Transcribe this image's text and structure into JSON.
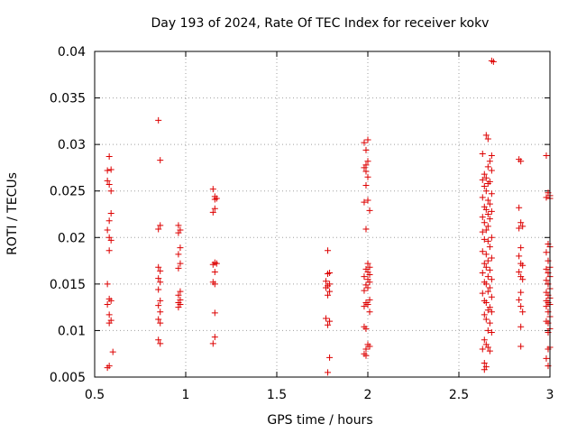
{
  "chart_data": {
    "type": "scatter",
    "title": "Day 193 of 2024, Rate Of TEC Index for receiver kokv",
    "xlabel": "GPS time / hours",
    "ylabel": "ROTI / TECUs",
    "xlim": [
      0.5,
      3.0
    ],
    "ylim": [
      0.005,
      0.04
    ],
    "xticks": [
      0.5,
      1.0,
      1.5,
      2.0,
      2.5,
      3.0
    ],
    "xtick_labels": [
      "0.5",
      "1",
      "1.5",
      "2",
      "2.5",
      "3"
    ],
    "yticks": [
      0.005,
      0.01,
      0.015,
      0.02,
      0.025,
      0.03,
      0.035,
      0.04
    ],
    "ytick_labels": [
      "0.005",
      "0.01",
      "0.015",
      "0.02",
      "0.025",
      "0.03",
      "0.035",
      "0.04"
    ],
    "grid": true,
    "legend": "none",
    "marker": "+",
    "color": "#dd0000",
    "series": [
      {
        "name": "ROTI",
        "points": [
          [
            0.57,
            0.0272
          ],
          [
            0.58,
            0.0287
          ],
          [
            0.59,
            0.0273
          ],
          [
            0.57,
            0.0261
          ],
          [
            0.58,
            0.0257
          ],
          [
            0.59,
            0.025
          ],
          [
            0.59,
            0.0226
          ],
          [
            0.58,
            0.0218
          ],
          [
            0.57,
            0.0208
          ],
          [
            0.58,
            0.02
          ],
          [
            0.59,
            0.0197
          ],
          [
            0.58,
            0.0186
          ],
          [
            0.57,
            0.015
          ],
          [
            0.58,
            0.0134
          ],
          [
            0.59,
            0.0132
          ],
          [
            0.57,
            0.0128
          ],
          [
            0.58,
            0.0117
          ],
          [
            0.59,
            0.0111
          ],
          [
            0.58,
            0.0108
          ],
          [
            0.6,
            0.0077
          ],
          [
            0.58,
            0.0062
          ],
          [
            0.57,
            0.006
          ],
          [
            0.85,
            0.0326
          ],
          [
            0.86,
            0.0283
          ],
          [
            0.86,
            0.0213
          ],
          [
            0.85,
            0.0209
          ],
          [
            0.85,
            0.0168
          ],
          [
            0.86,
            0.0164
          ],
          [
            0.85,
            0.0156
          ],
          [
            0.86,
            0.0152
          ],
          [
            0.85,
            0.0144
          ],
          [
            0.86,
            0.0132
          ],
          [
            0.85,
            0.0127
          ],
          [
            0.86,
            0.012
          ],
          [
            0.85,
            0.0112
          ],
          [
            0.86,
            0.0108
          ],
          [
            0.85,
            0.009
          ],
          [
            0.86,
            0.0086
          ],
          [
            0.96,
            0.0213
          ],
          [
            0.97,
            0.0208
          ],
          [
            0.96,
            0.0205
          ],
          [
            0.97,
            0.0189
          ],
          [
            0.96,
            0.0182
          ],
          [
            0.97,
            0.0172
          ],
          [
            0.96,
            0.0167
          ],
          [
            0.97,
            0.0142
          ],
          [
            0.96,
            0.0138
          ],
          [
            0.97,
            0.0133
          ],
          [
            0.96,
            0.013
          ],
          [
            0.97,
            0.0128
          ],
          [
            0.96,
            0.0125
          ],
          [
            1.15,
            0.0252
          ],
          [
            1.16,
            0.0244
          ],
          [
            1.17,
            0.0242
          ],
          [
            1.16,
            0.0241
          ],
          [
            1.16,
            0.0231
          ],
          [
            1.15,
            0.0227
          ],
          [
            1.16,
            0.0173
          ],
          [
            1.17,
            0.0172
          ],
          [
            1.15,
            0.0171
          ],
          [
            1.16,
            0.0163
          ],
          [
            1.15,
            0.0152
          ],
          [
            1.16,
            0.015
          ],
          [
            1.16,
            0.0119
          ],
          [
            1.16,
            0.0093
          ],
          [
            1.15,
            0.0086
          ],
          [
            1.78,
            0.0186
          ],
          [
            1.79,
            0.0162
          ],
          [
            1.78,
            0.0161
          ],
          [
            1.77,
            0.0153
          ],
          [
            1.79,
            0.015
          ],
          [
            1.78,
            0.0148
          ],
          [
            1.77,
            0.0146
          ],
          [
            1.79,
            0.0142
          ],
          [
            1.78,
            0.0138
          ],
          [
            1.77,
            0.0113
          ],
          [
            1.79,
            0.011
          ],
          [
            1.78,
            0.0106
          ],
          [
            1.79,
            0.0071
          ],
          [
            1.78,
            0.0055
          ],
          [
            1.98,
            0.0302
          ],
          [
            2.0,
            0.0305
          ],
          [
            1.99,
            0.0294
          ],
          [
            2.0,
            0.0282
          ],
          [
            1.99,
            0.0278
          ],
          [
            1.98,
            0.0275
          ],
          [
            1.99,
            0.0271
          ],
          [
            2.0,
            0.0265
          ],
          [
            1.99,
            0.0256
          ],
          [
            2.0,
            0.024
          ],
          [
            1.98,
            0.0238
          ],
          [
            2.01,
            0.0229
          ],
          [
            1.99,
            0.0209
          ],
          [
            2.0,
            0.0172
          ],
          [
            2.01,
            0.0168
          ],
          [
            1.99,
            0.0166
          ],
          [
            2.0,
            0.0163
          ],
          [
            2.01,
            0.016
          ],
          [
            1.98,
            0.0158
          ],
          [
            2.0,
            0.0155
          ],
          [
            2.01,
            0.0152
          ],
          [
            1.99,
            0.0149
          ],
          [
            2.0,
            0.0146
          ],
          [
            1.98,
            0.0143
          ],
          [
            2.01,
            0.0133
          ],
          [
            1.99,
            0.013
          ],
          [
            2.0,
            0.0128
          ],
          [
            1.98,
            0.0126
          ],
          [
            2.01,
            0.012
          ],
          [
            1.98,
            0.0104
          ],
          [
            1.99,
            0.0102
          ],
          [
            2.0,
            0.0085
          ],
          [
            2.01,
            0.0083
          ],
          [
            1.99,
            0.008
          ],
          [
            1.98,
            0.0075
          ],
          [
            1.99,
            0.0073
          ],
          [
            2.68,
            0.039
          ],
          [
            2.69,
            0.0389
          ],
          [
            2.65,
            0.031
          ],
          [
            2.66,
            0.0306
          ],
          [
            2.63,
            0.029
          ],
          [
            2.68,
            0.0288
          ],
          [
            2.67,
            0.0282
          ],
          [
            2.66,
            0.0276
          ],
          [
            2.68,
            0.0272
          ],
          [
            2.64,
            0.0268
          ],
          [
            2.65,
            0.0264
          ],
          [
            2.63,
            0.0262
          ],
          [
            2.67,
            0.026
          ],
          [
            2.66,
            0.0258
          ],
          [
            2.64,
            0.0255
          ],
          [
            2.65,
            0.025
          ],
          [
            2.68,
            0.0247
          ],
          [
            2.63,
            0.0243
          ],
          [
            2.66,
            0.024
          ],
          [
            2.67,
            0.0236
          ],
          [
            2.64,
            0.0233
          ],
          [
            2.65,
            0.023
          ],
          [
            2.68,
            0.0228
          ],
          [
            2.66,
            0.0225
          ],
          [
            2.63,
            0.0222
          ],
          [
            2.67,
            0.022
          ],
          [
            2.64,
            0.0216
          ],
          [
            2.66,
            0.0212
          ],
          [
            2.65,
            0.0208
          ],
          [
            2.63,
            0.0206
          ],
          [
            2.68,
            0.02
          ],
          [
            2.64,
            0.0198
          ],
          [
            2.66,
            0.0196
          ],
          [
            2.67,
            0.019
          ],
          [
            2.63,
            0.0185
          ],
          [
            2.65,
            0.0182
          ],
          [
            2.68,
            0.0178
          ],
          [
            2.66,
            0.0175
          ],
          [
            2.64,
            0.0172
          ],
          [
            2.65,
            0.0168
          ],
          [
            2.67,
            0.0165
          ],
          [
            2.63,
            0.0162
          ],
          [
            2.66,
            0.0158
          ],
          [
            2.68,
            0.0155
          ],
          [
            2.64,
            0.0152
          ],
          [
            2.65,
            0.015
          ],
          [
            2.67,
            0.0146
          ],
          [
            2.66,
            0.0142
          ],
          [
            2.63,
            0.014
          ],
          [
            2.68,
            0.0136
          ],
          [
            2.64,
            0.0132
          ],
          [
            2.65,
            0.013
          ],
          [
            2.67,
            0.0125
          ],
          [
            2.66,
            0.0122
          ],
          [
            2.68,
            0.012
          ],
          [
            2.64,
            0.0117
          ],
          [
            2.65,
            0.0112
          ],
          [
            2.67,
            0.0108
          ],
          [
            2.66,
            0.01
          ],
          [
            2.68,
            0.0098
          ],
          [
            2.64,
            0.009
          ],
          [
            2.65,
            0.0085
          ],
          [
            2.66,
            0.0082
          ],
          [
            2.63,
            0.008
          ],
          [
            2.67,
            0.0078
          ],
          [
            2.64,
            0.0065
          ],
          [
            2.65,
            0.0061
          ],
          [
            2.64,
            0.0058
          ],
          [
            2.83,
            0.0284
          ],
          [
            2.84,
            0.0282
          ],
          [
            2.83,
            0.0232
          ],
          [
            2.84,
            0.0216
          ],
          [
            2.85,
            0.0212
          ],
          [
            2.83,
            0.021
          ],
          [
            2.84,
            0.0189
          ],
          [
            2.83,
            0.018
          ],
          [
            2.84,
            0.0172
          ],
          [
            2.85,
            0.017
          ],
          [
            2.83,
            0.0163
          ],
          [
            2.84,
            0.0158
          ],
          [
            2.85,
            0.0155
          ],
          [
            2.84,
            0.0141
          ],
          [
            2.83,
            0.0133
          ],
          [
            2.84,
            0.0126
          ],
          [
            2.85,
            0.012
          ],
          [
            2.84,
            0.0104
          ],
          [
            2.84,
            0.0083
          ],
          [
            2.98,
            0.0288
          ],
          [
            2.99,
            0.0248
          ],
          [
            3.0,
            0.0245
          ],
          [
            2.98,
            0.0243
          ],
          [
            3.0,
            0.0242
          ],
          [
            2.99,
            0.0193
          ],
          [
            3.0,
            0.019
          ],
          [
            2.98,
            0.0184
          ],
          [
            2.99,
            0.0175
          ],
          [
            3.0,
            0.0168
          ],
          [
            2.98,
            0.0166
          ],
          [
            2.99,
            0.0162
          ],
          [
            3.0,
            0.0158
          ],
          [
            2.98,
            0.0154
          ],
          [
            2.99,
            0.015
          ],
          [
            3.0,
            0.0145
          ],
          [
            2.98,
            0.0141
          ],
          [
            2.99,
            0.0138
          ],
          [
            3.0,
            0.0135
          ],
          [
            2.98,
            0.0132
          ],
          [
            2.99,
            0.013
          ],
          [
            3.0,
            0.0128
          ],
          [
            2.98,
            0.0126
          ],
          [
            2.99,
            0.012
          ],
          [
            3.0,
            0.0115
          ],
          [
            2.98,
            0.011
          ],
          [
            2.99,
            0.0108
          ],
          [
            3.0,
            0.0102
          ],
          [
            2.99,
            0.0098
          ],
          [
            3.0,
            0.0082
          ],
          [
            2.99,
            0.008
          ],
          [
            2.98,
            0.007
          ],
          [
            2.99,
            0.0062
          ]
        ]
      }
    ]
  }
}
